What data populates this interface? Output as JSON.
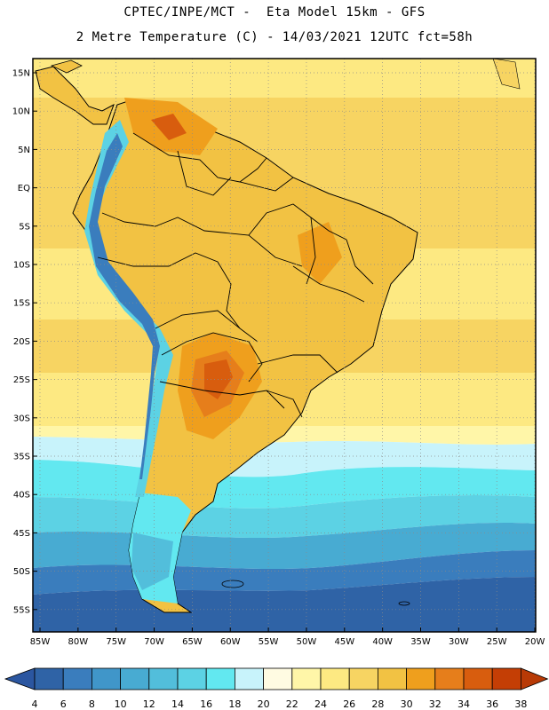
{
  "title_line1": "CPTEC/INPE/MCT -  Eta Model 15km - GFS",
  "title_line2": "2 Metre Temperature (C) - 14/03/2021 12UTC fct=58h",
  "map": {
    "lat_labels": [
      "15N",
      "10N",
      "5N",
      "EQ",
      "5S",
      "10S",
      "15S",
      "20S",
      "25S",
      "30S",
      "35S",
      "40S",
      "45S",
      "50S",
      "55S"
    ],
    "lon_labels": [
      "85W",
      "80W",
      "75W",
      "70W",
      "65W",
      "60W",
      "55W",
      "50W",
      "45W",
      "40W",
      "35W",
      "30W",
      "25W",
      "20W"
    ],
    "region_temperatures": {
      "north_atlantic_tropics_c": 27,
      "equatorial_atlantic_c": 29,
      "amazon_c": 30,
      "chaco_paraguay_c": 34,
      "southern_brazil_c": 30,
      "south_atlantic_35s_c": 17,
      "south_atlantic_45s_c": 11,
      "drake_passage_c": 6,
      "andes_c": 14
    }
  },
  "colorbar": {
    "labels": [
      "4",
      "6",
      "8",
      "10",
      "12",
      "14",
      "16",
      "18",
      "20",
      "22",
      "24",
      "26",
      "28",
      "30",
      "32",
      "34",
      "36",
      "38"
    ],
    "colors": [
      "#2f63a6",
      "#3a7dbd",
      "#4096c9",
      "#48abd2",
      "#52bedb",
      "#5cd2e4",
      "#62e8f0",
      "#c8f3fb",
      "#fffbe2",
      "#fff6a8",
      "#fde982",
      "#f7d462",
      "#f2c243",
      "#ef9f1d",
      "#e67e1b",
      "#d85d0e",
      "#c43e05"
    ],
    "end_low_color": "#2b56a0",
    "end_high_color": "#b83a06"
  },
  "colors": {
    "frame": "#000000",
    "coastline": "#000000",
    "grid": "#8a8a8a",
    "ocean_warm": "#f2c243",
    "ocean_cool": "#5cd2e4",
    "ocean_cold": "#2f63a6"
  }
}
